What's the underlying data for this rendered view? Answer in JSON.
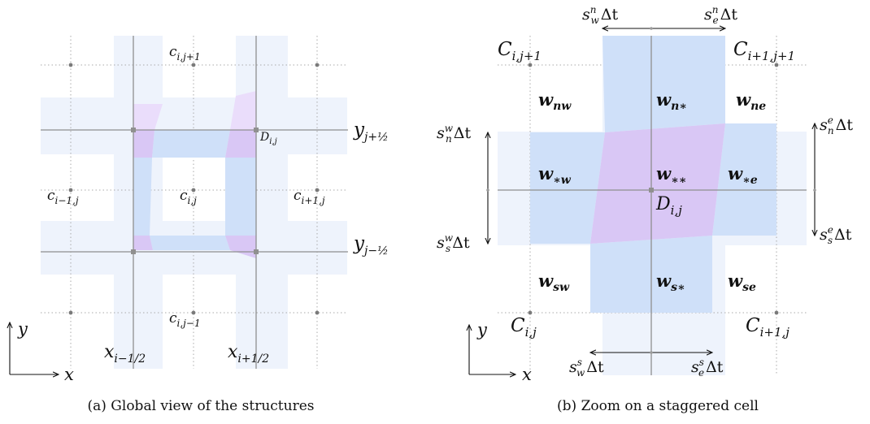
{
  "captions": {
    "a": "(a) Global view of the structures",
    "b": "(b) Zoom on a staggered cell"
  },
  "panel_a": {
    "cell_labels": {
      "c_top": {
        "base": "c",
        "sub": "i,j+1"
      },
      "c_left": {
        "base": "c",
        "sub": "i−1,j"
      },
      "c_center": {
        "base": "c",
        "sub": "i,j"
      },
      "c_right": {
        "base": "c",
        "sub": "i+1,j"
      },
      "c_bottom": {
        "base": "c",
        "sub": "i,j−1"
      },
      "d_cell": {
        "base": "D",
        "sub": "i,j"
      }
    },
    "interface_labels": {
      "y_top": {
        "base": "y",
        "sub": "j+½"
      },
      "y_bottom": {
        "base": "y",
        "sub": "j−½"
      },
      "x_left": {
        "base": "x",
        "sub": "i−1/2"
      },
      "x_right": {
        "base": "x",
        "sub": "i+1/2"
      }
    },
    "axes": {
      "x": "x",
      "y": "y"
    }
  },
  "panel_b": {
    "corner_labels": {
      "tl": {
        "base": "C",
        "sub": "i,j+1"
      },
      "tr": {
        "base": "C",
        "sub": "i+1,j+1"
      },
      "bl": {
        "base": "C",
        "sub": "i,j"
      },
      "br": {
        "base": "C",
        "sub": "i+1,j"
      }
    },
    "states": {
      "nw": {
        "base": "w",
        "sub": "nw"
      },
      "n": {
        "base": "w",
        "sub": "n∗"
      },
      "ne": {
        "base": "w",
        "sub": "ne"
      },
      "w": {
        "base": "w",
        "sub": "∗w"
      },
      "c": {
        "base": "w",
        "sub": "∗∗"
      },
      "e": {
        "base": "w",
        "sub": "∗e"
      },
      "sw": {
        "base": "w",
        "sub": "sw"
      },
      "s": {
        "base": "w",
        "sub": "s∗"
      },
      "se": {
        "base": "w",
        "sub": "se"
      }
    },
    "d_cell": {
      "base": "D",
      "sub": "i,j"
    },
    "speeds": {
      "top_left": {
        "base": "s",
        "sup": "n",
        "sub": "w",
        "tail": "Δt"
      },
      "top_right": {
        "base": "s",
        "sup": "n",
        "sub": "e",
        "tail": "Δt"
      },
      "left_top": {
        "base": "s",
        "sup": "w",
        "sub": "n",
        "tail": "Δt"
      },
      "left_bottom": {
        "base": "s",
        "sup": "w",
        "sub": "s",
        "tail": "Δt"
      },
      "right_top": {
        "base": "s",
        "sup": "e",
        "sub": "n",
        "tail": "Δt"
      },
      "right_bottom": {
        "base": "s",
        "sup": "e",
        "sub": "s",
        "tail": "Δt"
      },
      "bottom_left": {
        "base": "s",
        "sup": "s",
        "sub": "w",
        "tail": "Δt"
      },
      "bottom_right": {
        "base": "s",
        "sup": "s",
        "sub": "e",
        "tail": "Δt"
      }
    },
    "axes": {
      "x": "x",
      "y": "y"
    }
  },
  "colors": {
    "light_blue": "#eef3fc",
    "blue": "#cfe0f9",
    "purple": "#d9c7f5",
    "grid": "#909090",
    "dot": "#777777"
  }
}
